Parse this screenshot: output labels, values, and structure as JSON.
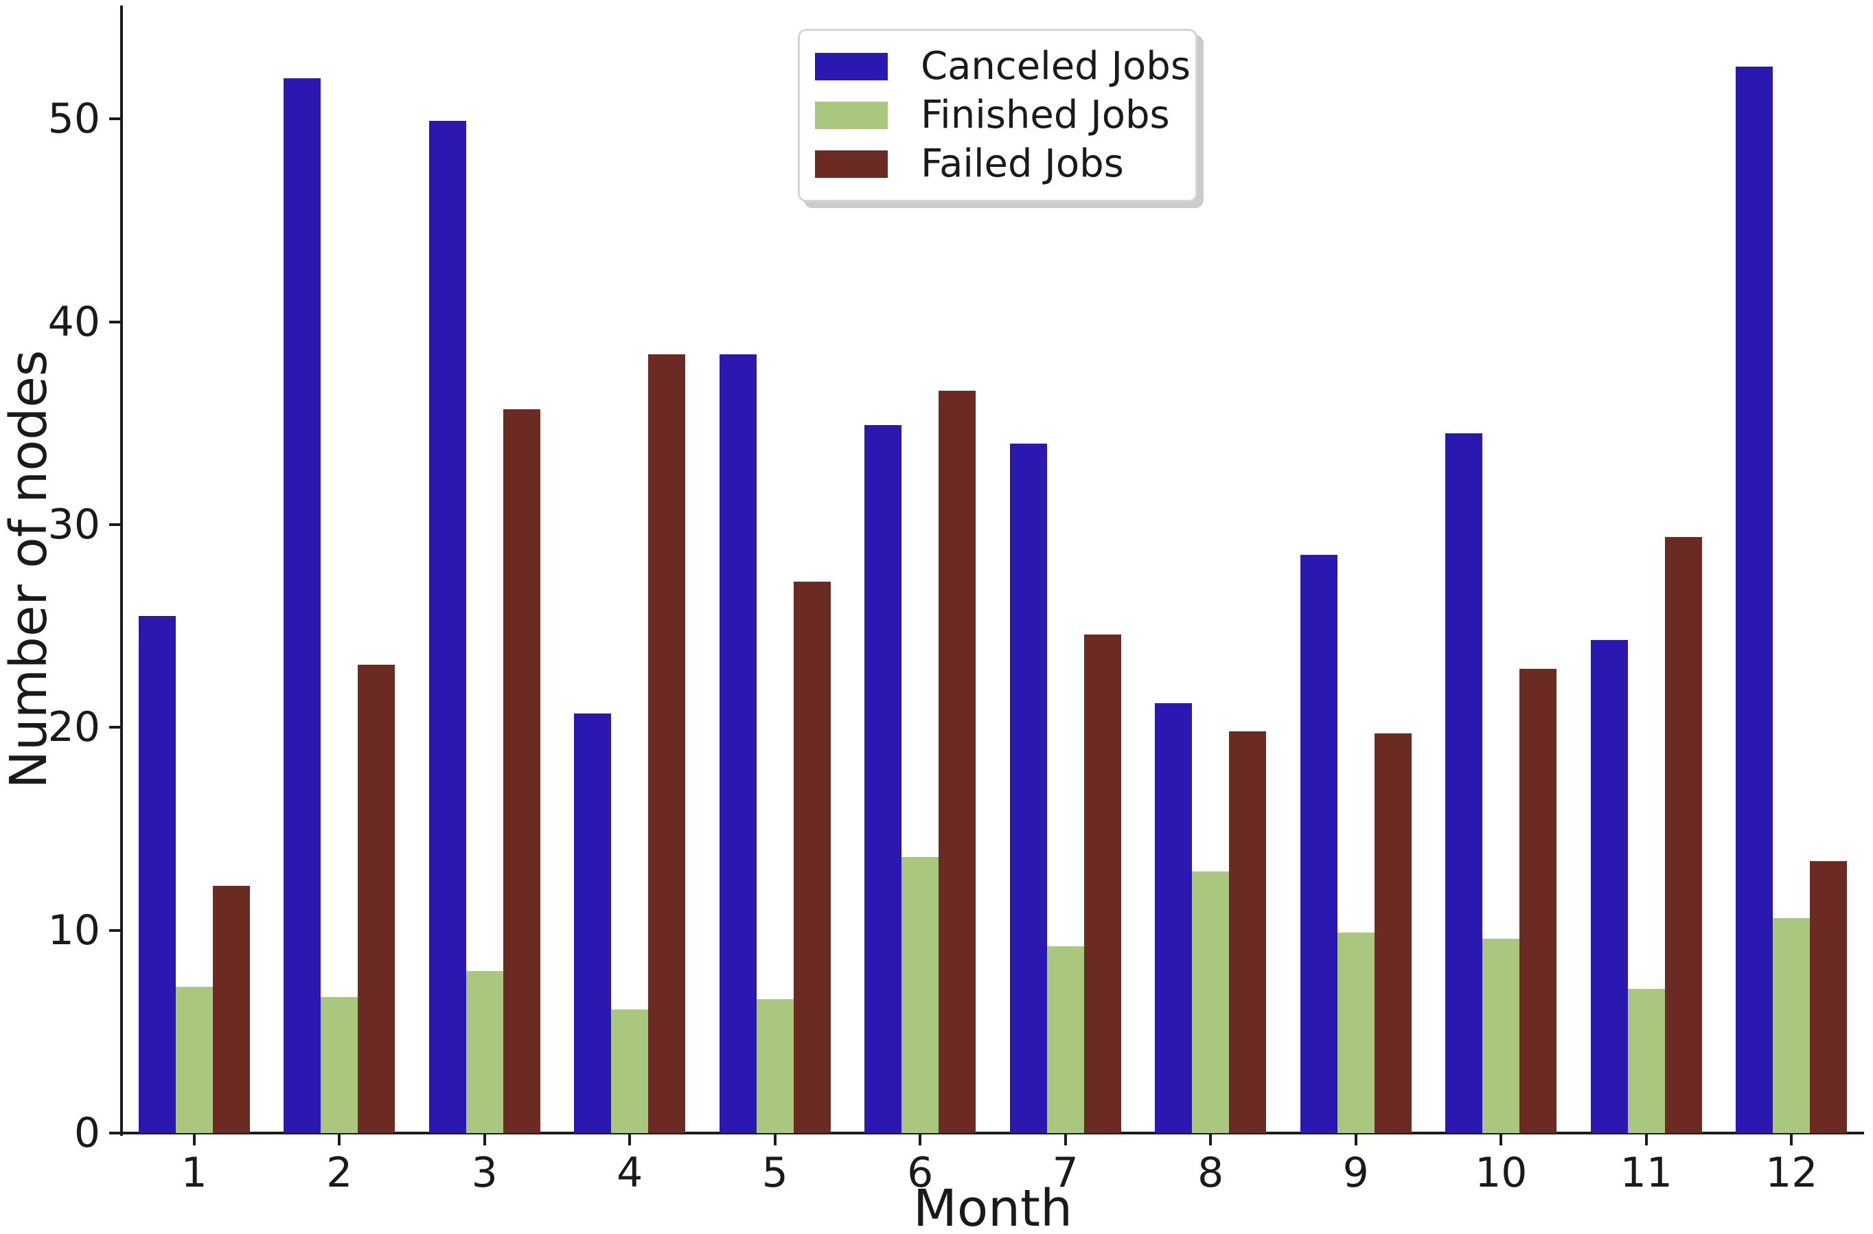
{
  "figure": {
    "background": "#ffffff",
    "text_color": "#1a1a1a",
    "spine_color": "#1b1b1b"
  },
  "chart_data": {
    "type": "bar",
    "title": "",
    "xlabel": "Month",
    "ylabel": "Number of nodes",
    "categories": [
      "1",
      "2",
      "3",
      "4",
      "5",
      "6",
      "7",
      "8",
      "9",
      "10",
      "11",
      "12"
    ],
    "series": [
      {
        "name": "Canceled Jobs",
        "color": "#2B18B0",
        "values": [
          25.5,
          52.0,
          49.9,
          20.7,
          38.4,
          34.9,
          34.0,
          21.2,
          28.5,
          34.5,
          24.3,
          52.6
        ]
      },
      {
        "name": "Finished Jobs",
        "color": "#A9C77E",
        "values": [
          7.2,
          6.7,
          8.0,
          6.1,
          6.6,
          13.6,
          9.2,
          12.9,
          9.9,
          9.6,
          7.1,
          10.6
        ]
      },
      {
        "name": "Failed Jobs",
        "color": "#6B2A22",
        "values": [
          12.2,
          23.1,
          35.7,
          38.4,
          27.2,
          36.6,
          24.6,
          19.8,
          19.7,
          22.9,
          29.4,
          13.4
        ]
      }
    ],
    "ylim": [
      0,
      55.6
    ],
    "yticks": [
      0,
      10,
      20,
      30,
      40,
      50
    ],
    "grid": false,
    "legend_position": "upper center, inside axes",
    "bar_group": "grouped, 3 adjacent bars per month"
  }
}
